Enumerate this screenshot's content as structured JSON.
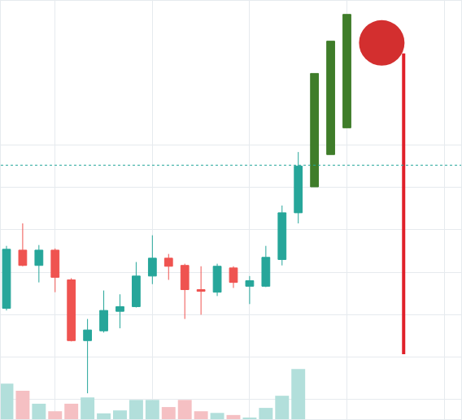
{
  "chart_data": {
    "type": "candlestick",
    "xlim": [
      0.65,
      29.05
    ],
    "xticks": [
      4,
      10,
      16,
      22,
      28
    ],
    "ylim": [
      -4.6,
      93.9
    ],
    "yticks": [
      0,
      10,
      20,
      30,
      40,
      50,
      60
    ],
    "y2lim": [
      0,
      100
    ],
    "grid": true,
    "tick_labels": false,
    "reference_line": {
      "value": 55.2,
      "color": "#26a69a",
      "line_style": "dotted"
    },
    "series": [
      {
        "type": "bar",
        "axis": "y2",
        "x": [
          1,
          2,
          3,
          4,
          5,
          6,
          7,
          8,
          9,
          10,
          11,
          12,
          13,
          14,
          15,
          16,
          17,
          18,
          19
        ],
        "values": [
          8.5,
          6.8,
          3.7,
          1.9,
          3.7,
          5.2,
          1.4,
          2.1,
          4.6,
          4.6,
          2.9,
          4.6,
          1.9,
          1.5,
          1.0,
          0.4,
          2.7,
          5.6,
          12.0
        ],
        "colors": [
          "#b2dfdb",
          "#f5c0c3",
          "#b2dfdb",
          "#f5c0c3",
          "#f5c0c3",
          "#b2dfdb",
          "#b2dfdb",
          "#b2dfdb",
          "#b2dfdb",
          "#b2dfdb",
          "#f5c0c3",
          "#f5c0c3",
          "#f5c0c3",
          "#b2dfdb",
          "#f5c0c3",
          "#b2dfdb",
          "#b2dfdb",
          "#b2dfdb",
          "#b2dfdb"
        ]
      },
      {
        "type": "candlestick",
        "color": "#26a69a",
        "x": [
          1,
          3,
          6,
          7,
          8,
          9,
          10,
          14,
          16,
          17,
          18,
          19
        ],
        "open": [
          21.5,
          31.6,
          13.9,
          16.2,
          20.8,
          21.9,
          29.1,
          25.3,
          26.7,
          26.7,
          33.0,
          44.0
        ],
        "high": [
          36.2,
          36.4,
          19.0,
          25.7,
          24.8,
          32.4,
          38.7,
          32.0,
          29.1,
          36.2,
          45.7,
          58.3
        ],
        "low": [
          21.0,
          27.6,
          1.5,
          15.8,
          16.8,
          21.7,
          27.2,
          24.4,
          22.5,
          26.5,
          31.6,
          41.5
        ],
        "close": [
          35.4,
          35.2,
          16.4,
          21.0,
          21.9,
          29.1,
          33.3,
          31.4,
          28.0,
          33.5,
          44.0,
          55.0
        ]
      },
      {
        "type": "candlestick",
        "color": "#ef5350",
        "x": [
          2,
          4,
          5,
          11,
          12,
          13,
          15
        ],
        "open": [
          35.2,
          35.2,
          28.2,
          33.3,
          31.6,
          25.9,
          31.0
        ],
        "high": [
          41.5,
          35.6,
          28.6,
          34.3,
          32.0,
          31.4,
          31.4
        ],
        "low": [
          31.4,
          25.3,
          13.7,
          28.2,
          19.0,
          20.0,
          26.3
        ],
        "close": [
          31.6,
          28.8,
          13.9,
          31.4,
          25.9,
          25.5,
          27.6
        ]
      },
      {
        "type": "candlestick",
        "color": "#3f7d2a",
        "x": [
          20,
          21,
          22
        ],
        "open": [
          50.1,
          57.7,
          64.0
        ],
        "high": [
          76.8,
          84.4,
          90.7
        ],
        "low": [
          50.1,
          57.7,
          64.0
        ],
        "close": [
          76.8,
          84.4,
          90.7
        ]
      },
      {
        "type": "line",
        "color": "#e0202a",
        "line_style": "solid",
        "x": [
          25.5,
          25.5
        ],
        "values": [
          81.5,
          10.7
        ]
      },
      {
        "type": "scatter",
        "color": "#d32f2f",
        "marker": "circle",
        "x": [
          24.15
        ],
        "values": [
          84.0
        ]
      }
    ]
  }
}
